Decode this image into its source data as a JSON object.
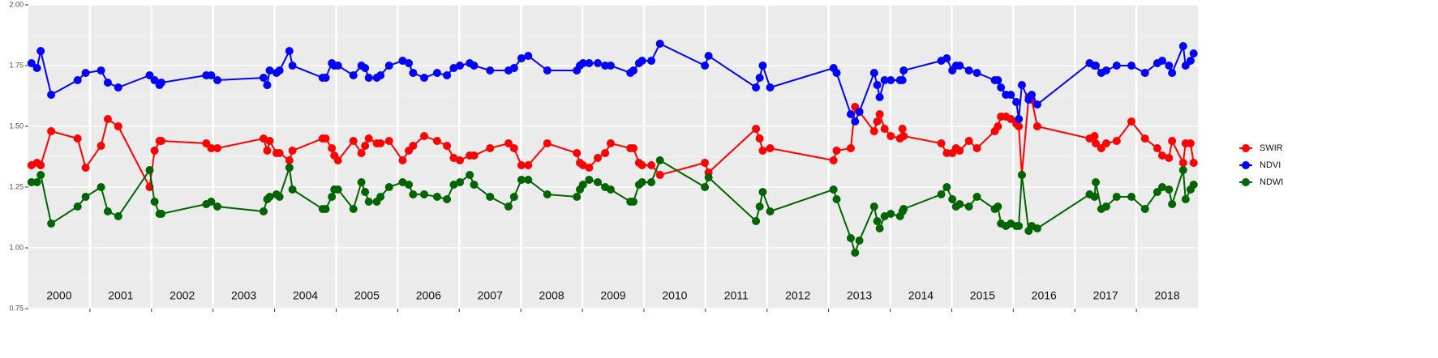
{
  "chart_data": {
    "type": "line",
    "x": [
      2000.05,
      2000.14,
      2000.2,
      2000.37,
      2000.8,
      2000.93,
      2001.18,
      2001.29,
      2001.46,
      2001.97,
      2002.05,
      2002.13,
      2002.16,
      2002.89,
      2002.97,
      2003.07,
      2003.82,
      2003.88,
      2003.92,
      2004.03,
      2004.08,
      2004.24,
      2004.29,
      2004.78,
      2004.83,
      2004.93,
      2004.97,
      2005.03,
      2005.28,
      2005.41,
      2005.47,
      2005.53,
      2005.66,
      2005.72,
      2005.86,
      2006.08,
      2006.18,
      2006.25,
      2006.43,
      2006.64,
      2006.8,
      2006.91,
      2007.01,
      2007.17,
      2007.24,
      2007.5,
      2007.8,
      2007.89,
      2008.01,
      2008.12,
      2008.43,
      2008.91,
      2008.96,
      2009.01,
      2009.11,
      2009.25,
      2009.37,
      2009.46,
      2009.78,
      2009.83,
      2009.92,
      2009.97,
      2010.12,
      2010.26,
      2010.99,
      2011.05,
      2011.82,
      2011.88,
      2011.93,
      2012.05,
      2013.08,
      2013.13,
      2013.36,
      2013.43,
      2013.5,
      2013.74,
      2013.79,
      2013.83,
      2013.91,
      2014.01,
      2014.16,
      2014.2,
      2014.22,
      2014.83,
      2014.92,
      2015.01,
      2015.07,
      2015.13,
      2015.28,
      2015.41,
      2015.7,
      2015.75,
      2015.8,
      2015.88,
      2015.96,
      2016.05,
      2016.09,
      2016.14,
      2016.25,
      2016.3,
      2016.39,
      2017.24,
      2017.32,
      2017.34,
      2017.43,
      2017.51,
      2017.68,
      2017.92,
      2018.14,
      2018.34,
      2018.42,
      2018.53,
      2018.58,
      2018.76,
      2018.8,
      2018.88,
      2018.93
    ],
    "series": [
      {
        "name": "SWIR",
        "color": "#ff0000",
        "values": [
          1.34,
          1.35,
          1.34,
          1.48,
          1.45,
          1.33,
          1.42,
          1.53,
          1.5,
          1.25,
          1.4,
          1.44,
          1.44,
          1.43,
          1.41,
          1.41,
          1.45,
          1.4,
          1.44,
          1.39,
          1.39,
          1.36,
          1.4,
          1.45,
          1.45,
          1.41,
          1.38,
          1.36,
          1.44,
          1.39,
          1.42,
          1.45,
          1.43,
          1.43,
          1.44,
          1.36,
          1.4,
          1.42,
          1.46,
          1.44,
          1.42,
          1.37,
          1.36,
          1.38,
          1.38,
          1.41,
          1.43,
          1.41,
          1.34,
          1.34,
          1.43,
          1.39,
          1.35,
          1.34,
          1.33,
          1.37,
          1.39,
          1.43,
          1.41,
          1.41,
          1.35,
          1.34,
          1.34,
          1.3,
          1.35,
          1.31,
          1.49,
          1.45,
          1.4,
          1.41,
          1.36,
          1.4,
          1.41,
          1.58,
          1.56,
          1.48,
          1.52,
          1.55,
          1.49,
          1.46,
          1.45,
          1.49,
          1.46,
          1.43,
          1.39,
          1.39,
          1.41,
          1.4,
          1.44,
          1.41,
          1.48,
          1.5,
          1.54,
          1.54,
          1.53,
          1.51,
          1.5,
          1.3,
          1.62,
          1.61,
          1.5,
          1.45,
          1.46,
          1.43,
          1.41,
          1.43,
          1.44,
          1.52,
          1.45,
          1.41,
          1.38,
          1.37,
          1.44,
          1.35,
          1.43,
          1.43,
          1.35
        ]
      },
      {
        "name": "NDVI",
        "color": "#0000ff",
        "values": [
          1.76,
          1.74,
          1.81,
          1.63,
          1.69,
          1.72,
          1.73,
          1.68,
          1.66,
          1.71,
          1.69,
          1.67,
          1.68,
          1.71,
          1.71,
          1.69,
          1.7,
          1.67,
          1.73,
          1.72,
          1.73,
          1.81,
          1.75,
          1.7,
          1.7,
          1.76,
          1.75,
          1.75,
          1.71,
          1.75,
          1.74,
          1.7,
          1.7,
          1.71,
          1.75,
          1.77,
          1.76,
          1.72,
          1.7,
          1.72,
          1.71,
          1.74,
          1.75,
          1.76,
          1.75,
          1.73,
          1.73,
          1.74,
          1.78,
          1.79,
          1.73,
          1.73,
          1.75,
          1.76,
          1.76,
          1.76,
          1.75,
          1.75,
          1.72,
          1.73,
          1.76,
          1.77,
          1.77,
          1.84,
          1.75,
          1.79,
          1.66,
          1.7,
          1.75,
          1.66,
          1.74,
          1.72,
          1.55,
          1.52,
          1.56,
          1.72,
          1.67,
          1.62,
          1.69,
          1.69,
          1.69,
          1.69,
          1.73,
          1.77,
          1.78,
          1.73,
          1.75,
          1.75,
          1.73,
          1.72,
          1.69,
          1.69,
          1.66,
          1.63,
          1.63,
          1.6,
          1.53,
          1.67,
          1.61,
          1.63,
          1.59,
          1.76,
          1.75,
          1.75,
          1.72,
          1.73,
          1.75,
          1.75,
          1.72,
          1.76,
          1.77,
          1.75,
          1.72,
          1.83,
          1.75,
          1.77,
          1.8
        ]
      },
      {
        "name": "NDWI",
        "color": "#006400",
        "values": [
          1.27,
          1.27,
          1.3,
          1.1,
          1.17,
          1.21,
          1.25,
          1.15,
          1.13,
          1.32,
          1.19,
          1.14,
          1.14,
          1.18,
          1.19,
          1.17,
          1.15,
          1.2,
          1.21,
          1.22,
          1.21,
          1.33,
          1.24,
          1.16,
          1.16,
          1.21,
          1.24,
          1.24,
          1.16,
          1.27,
          1.23,
          1.19,
          1.19,
          1.21,
          1.25,
          1.27,
          1.26,
          1.22,
          1.22,
          1.21,
          1.2,
          1.26,
          1.27,
          1.3,
          1.26,
          1.21,
          1.17,
          1.21,
          1.28,
          1.28,
          1.22,
          1.21,
          1.24,
          1.26,
          1.28,
          1.27,
          1.25,
          1.24,
          1.19,
          1.19,
          1.26,
          1.27,
          1.27,
          1.36,
          1.25,
          1.29,
          1.11,
          1.17,
          1.23,
          1.15,
          1.24,
          1.2,
          1.04,
          0.98,
          1.03,
          1.17,
          1.11,
          1.08,
          1.13,
          1.14,
          1.13,
          1.15,
          1.16,
          1.22,
          1.25,
          1.2,
          1.17,
          1.18,
          1.17,
          1.21,
          1.16,
          1.17,
          1.1,
          1.09,
          1.1,
          1.09,
          1.09,
          1.3,
          1.07,
          1.09,
          1.08,
          1.22,
          1.21,
          1.27,
          1.16,
          1.17,
          1.21,
          1.21,
          1.16,
          1.23,
          1.25,
          1.24,
          1.18,
          1.32,
          1.2,
          1.24,
          1.26
        ]
      }
    ],
    "xlim": [
      2000,
      2019
    ],
    "xgrid": [
      2001,
      2002,
      2003,
      2004,
      2005,
      2006,
      2007,
      2008,
      2009,
      2010,
      2011,
      2012,
      2013,
      2014,
      2015,
      2016,
      2017,
      2018
    ],
    "x_labels": [
      {
        "value": 2000.5,
        "label": "2000"
      },
      {
        "value": 2001.5,
        "label": "2001"
      },
      {
        "value": 2002.5,
        "label": "2002"
      },
      {
        "value": 2003.5,
        "label": "2003"
      },
      {
        "value": 2004.5,
        "label": "2004"
      },
      {
        "value": 2005.5,
        "label": "2005"
      },
      {
        "value": 2006.5,
        "label": "2006"
      },
      {
        "value": 2007.5,
        "label": "2007"
      },
      {
        "value": 2008.5,
        "label": "2008"
      },
      {
        "value": 2009.5,
        "label": "2009"
      },
      {
        "value": 2010.5,
        "label": "2010"
      },
      {
        "value": 2011.5,
        "label": "2011"
      },
      {
        "value": 2012.5,
        "label": "2012"
      },
      {
        "value": 2013.5,
        "label": "2013"
      },
      {
        "value": 2014.5,
        "label": "2014"
      },
      {
        "value": 2015.5,
        "label": "2015"
      },
      {
        "value": 2016.5,
        "label": "2016"
      },
      {
        "value": 2017.5,
        "label": "2017"
      },
      {
        "value": 2018.5,
        "label": "2018"
      }
    ],
    "ylim": [
      0.75,
      2.0
    ],
    "yticks": [
      0.75,
      {
        "value": 1.0,
        "label": "1.00"
      },
      1.25,
      {
        "value": 1.5,
        "label": "1.50"
      },
      1.75,
      {
        "value": 2.0,
        "label": "2.00"
      }
    ],
    "grid": true,
    "legend": "right"
  }
}
